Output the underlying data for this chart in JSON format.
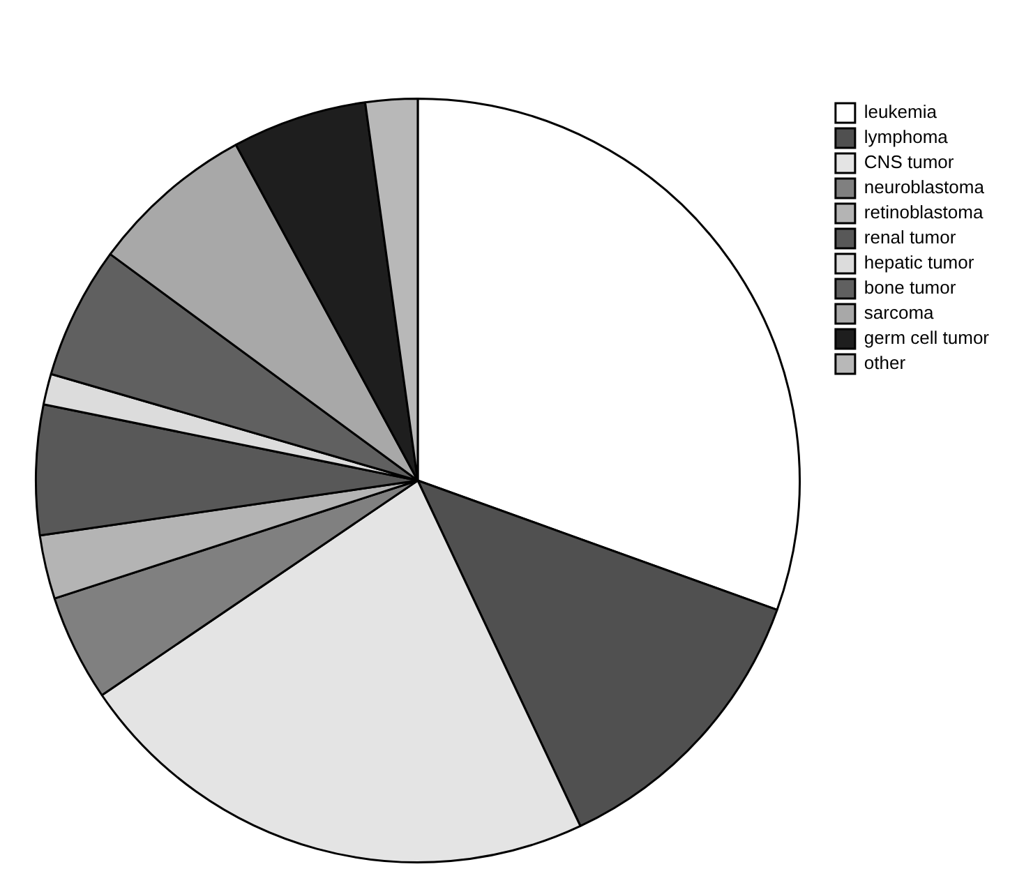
{
  "chart_data": {
    "type": "pie",
    "categories": [
      "leukemia",
      "lymphoma",
      "CNS tumor",
      "neuroblastoma",
      "retinoblastoma",
      "renal tumor",
      "hepatic tumor",
      "bone tumor",
      "sarcoma",
      "germ cell tumor",
      "other"
    ],
    "values": [
      30.5,
      12.5,
      22.5,
      4.5,
      2.7,
      5.5,
      1.3,
      5.6,
      7.0,
      5.7,
      2.2
    ],
    "colors": [
      "#ffffff",
      "#505050",
      "#e4e4e4",
      "#808080",
      "#b4b4b4",
      "#585858",
      "#dcdcdc",
      "#606060",
      "#a8a8a8",
      "#1e1e1e",
      "#b8b8b8"
    ],
    "legend": "top right"
  }
}
